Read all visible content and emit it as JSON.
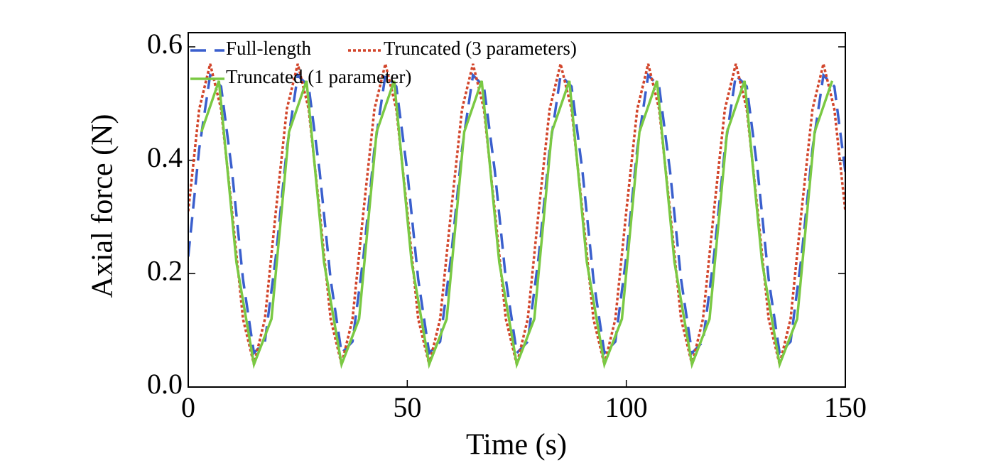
{
  "chart_data": {
    "type": "line",
    "xlabel": "Time (s)",
    "ylabel": "Axial force (N)",
    "xlim": [
      0,
      150
    ],
    "ylim": [
      0,
      0.625
    ],
    "xticks": [
      0,
      50,
      100,
      150
    ],
    "yticks": [
      {
        "value": 0,
        "label": "0.0"
      },
      0.2,
      0.4,
      0.6
    ],
    "legend": "upper left",
    "series": [
      {
        "name": "Full-length",
        "color": "#3a5fcd",
        "linestyle": "dashed",
        "x": [
          0,
          2.5,
          5,
          7.5,
          10,
          12.5,
          15,
          17.5,
          20,
          22.5,
          25,
          27.5,
          30,
          32.5,
          35,
          37.5,
          40,
          42.5,
          45,
          47.5,
          50,
          52.5,
          55,
          57.5,
          60,
          62.5,
          65,
          67.5,
          70,
          72.5,
          75,
          77.5,
          80,
          82.5,
          85,
          87.5,
          90,
          92.5,
          95,
          97.5,
          100,
          102.5,
          105,
          107.5,
          110,
          112.5,
          115,
          117.5,
          120,
          122.5,
          125,
          127.5,
          130,
          132.5,
          135,
          137.5,
          140,
          142.5,
          145,
          147.5,
          150
        ],
        "values": [
          0.23,
          0.42,
          0.55,
          0.53,
          0.38,
          0.19,
          0.06,
          0.08,
          0.23,
          0.42,
          0.55,
          0.53,
          0.38,
          0.19,
          0.06,
          0.08,
          0.23,
          0.42,
          0.55,
          0.53,
          0.38,
          0.19,
          0.06,
          0.08,
          0.23,
          0.42,
          0.55,
          0.53,
          0.38,
          0.19,
          0.06,
          0.08,
          0.23,
          0.42,
          0.55,
          0.53,
          0.38,
          0.19,
          0.06,
          0.08,
          0.23,
          0.42,
          0.55,
          0.53,
          0.38,
          0.19,
          0.06,
          0.08,
          0.23,
          0.42,
          0.55,
          0.53,
          0.38,
          0.19,
          0.06,
          0.08,
          0.23,
          0.42,
          0.55,
          0.53,
          0.38
        ]
      },
      {
        "name": "Truncated (3 parameters)",
        "color": "#d2452b",
        "linestyle": "dotted",
        "x": [
          0,
          2.5,
          5,
          7.5,
          10,
          12.5,
          15,
          17.5,
          20,
          22.5,
          25,
          27.5,
          30,
          32.5,
          35,
          37.5,
          40,
          42.5,
          45,
          47.5,
          50,
          52.5,
          55,
          57.5,
          60,
          62.5,
          65,
          67.5,
          70,
          72.5,
          75,
          77.5,
          80,
          82.5,
          85,
          87.5,
          90,
          92.5,
          95,
          97.5,
          100,
          102.5,
          105,
          107.5,
          110,
          112.5,
          115,
          117.5,
          120,
          122.5,
          125,
          127.5,
          130,
          132.5,
          135,
          137.5,
          140,
          142.5,
          145,
          147.5,
          150
        ],
        "values": [
          0.31,
          0.49,
          0.57,
          0.49,
          0.31,
          0.12,
          0.04,
          0.12,
          0.31,
          0.49,
          0.57,
          0.49,
          0.31,
          0.12,
          0.04,
          0.12,
          0.31,
          0.49,
          0.57,
          0.49,
          0.31,
          0.12,
          0.04,
          0.12,
          0.31,
          0.49,
          0.57,
          0.49,
          0.31,
          0.12,
          0.04,
          0.12,
          0.31,
          0.49,
          0.57,
          0.49,
          0.31,
          0.12,
          0.04,
          0.12,
          0.31,
          0.49,
          0.57,
          0.49,
          0.31,
          0.12,
          0.04,
          0.12,
          0.31,
          0.49,
          0.57,
          0.49,
          0.31,
          0.12,
          0.04,
          0.12,
          0.31,
          0.49,
          0.57,
          0.49,
          0.31
        ]
      },
      {
        "name": "Truncated (1 parameter)",
        "color": "#7ac943",
        "linestyle": "solid",
        "x": [
          3,
          7,
          11,
          15,
          19,
          23,
          27,
          31,
          35,
          39,
          43,
          47,
          51,
          55,
          59,
          63,
          67,
          71,
          75,
          79,
          83,
          87,
          91,
          95,
          99,
          103,
          107,
          111,
          115,
          119,
          123,
          127,
          131,
          135,
          139,
          143,
          147
        ],
        "values": [
          0.45,
          0.54,
          0.22,
          0.04,
          0.12,
          0.45,
          0.54,
          0.22,
          0.04,
          0.12,
          0.45,
          0.54,
          0.22,
          0.04,
          0.12,
          0.45,
          0.54,
          0.22,
          0.04,
          0.12,
          0.45,
          0.54,
          0.22,
          0.04,
          0.12,
          0.45,
          0.54,
          0.22,
          0.04,
          0.12,
          0.45,
          0.54,
          0.22,
          0.04,
          0.12,
          0.45,
          0.54
        ]
      }
    ]
  }
}
